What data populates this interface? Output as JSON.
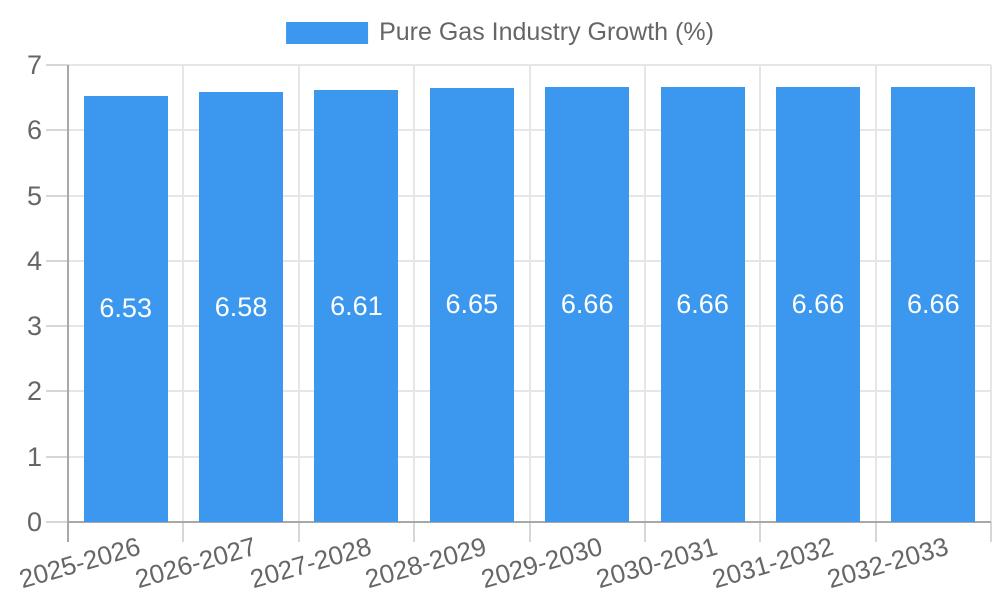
{
  "chart_data": {
    "type": "bar",
    "title": "Pure Gas Industry Growth (%)",
    "categories": [
      "2025-2026",
      "2026-2027",
      "2027-2028",
      "2028-2029",
      "2029-2030",
      "2030-2031",
      "2031-2032",
      "2032-2033"
    ],
    "values": [
      6.53,
      6.58,
      6.61,
      6.65,
      6.66,
      6.66,
      6.66,
      6.66
    ],
    "value_labels": [
      "6.53",
      "6.58",
      "6.61",
      "6.65",
      "6.66",
      "6.66",
      "6.66",
      "6.66"
    ],
    "xlabel": "",
    "ylabel": "",
    "ylim": [
      0,
      7
    ],
    "yticks": [
      0,
      1,
      2,
      3,
      4,
      5,
      6,
      7
    ],
    "grid": true,
    "legend_position": "top-center",
    "colors": {
      "bar": "#3b98ee",
      "value_label": "#ffffff",
      "tick_label": "#666666",
      "gridline": "#e6e6e6",
      "axis_line": "#a8a8a8",
      "tick_mark": "#d6d6d6",
      "background": "#ffffff"
    }
  }
}
